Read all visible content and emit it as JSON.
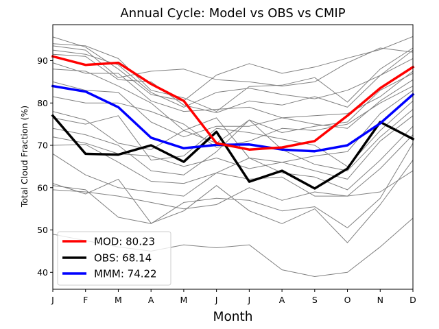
{
  "chart_data": {
    "type": "line",
    "title": "Annual Cycle: Model vs OBS vs CMIP",
    "xlabel": "Month",
    "ylabel": "Total Cloud Fraction (%)",
    "categories": [
      "J",
      "F",
      "M",
      "A",
      "M",
      "J",
      "J",
      "A",
      "S",
      "O",
      "N",
      "D"
    ],
    "ylim": [
      36,
      98.5
    ],
    "yticks": [
      40,
      50,
      60,
      70,
      80,
      90
    ],
    "legend_position": "lower-left",
    "series": [
      {
        "name": "MOD",
        "legend_label": "MOD: 80.23",
        "color": "#ff0000",
        "values": [
          91.0,
          89.0,
          89.5,
          84.5,
          80.5,
          70.5,
          69.0,
          69.5,
          71.0,
          77.0,
          83.5,
          88.5
        ]
      },
      {
        "name": "OBS",
        "legend_label": "OBS: 68.14",
        "color": "#000000",
        "values": [
          77.0,
          68.0,
          67.8,
          70.0,
          66.1,
          73.2,
          61.4,
          64.0,
          59.8,
          64.5,
          75.5,
          71.5
        ]
      },
      {
        "name": "MMM",
        "legend_label": "MMM: 74.22",
        "color": "#0000ff",
        "values": [
          84.0,
          82.7,
          79.0,
          71.8,
          69.3,
          70.1,
          70.2,
          69.0,
          68.6,
          70.0,
          75.2,
          82.0
        ]
      }
    ],
    "cmip_color": "#808080",
    "cmip_models": [
      [
        95.6,
        93.2,
        88.0,
        82.0,
        80.5,
        86.6,
        89.3,
        87.0,
        88.5,
        90.6,
        92.6,
        95.7
      ],
      [
        94.0,
        93.5,
        90.5,
        83.0,
        81.2,
        78.0,
        83.9,
        84.2,
        86.0,
        80.2,
        88.0,
        93.0
      ],
      [
        93.5,
        92.5,
        86.0,
        87.5,
        88.0,
        85.5,
        85.0,
        84.0,
        85.0,
        89.5,
        93.0,
        92.0
      ],
      [
        92.5,
        91.5,
        89.0,
        82.5,
        79.0,
        82.5,
        83.5,
        82.0,
        81.0,
        83.0,
        86.5,
        92.5
      ],
      [
        91.5,
        91.0,
        85.5,
        85.0,
        79.5,
        77.7,
        80.5,
        79.5,
        81.5,
        79.0,
        86.5,
        90.5
      ],
      [
        89.5,
        87.0,
        87.0,
        80.5,
        78.0,
        78.5,
        79.0,
        76.5,
        77.0,
        77.5,
        81.5,
        87.5
      ],
      [
        88.0,
        87.5,
        84.0,
        80.0,
        73.5,
        70.5,
        76.0,
        73.0,
        74.5,
        75.5,
        83.0,
        87.0
      ],
      [
        85.0,
        83.0,
        82.5,
        75.5,
        72.0,
        74.5,
        74.5,
        76.5,
        75.0,
        74.0,
        80.5,
        85.5
      ],
      [
        81.5,
        80.0,
        80.0,
        78.0,
        75.0,
        69.5,
        71.0,
        74.0,
        73.5,
        75.0,
        80.0,
        84.0
      ],
      [
        78.0,
        76.0,
        70.5,
        69.0,
        73.5,
        76.5,
        67.0,
        66.0,
        67.5,
        68.5,
        77.5,
        83.0
      ],
      [
        76.5,
        75.0,
        77.0,
        66.5,
        67.5,
        74.0,
        73.0,
        71.5,
        70.0,
        65.0,
        73.5,
        80.5
      ],
      [
        74.0,
        72.5,
        70.0,
        64.0,
        63.0,
        68.5,
        76.0,
        69.0,
        65.5,
        64.0,
        72.0,
        78.5
      ],
      [
        72.0,
        70.5,
        68.0,
        67.5,
        65.0,
        67.0,
        64.5,
        66.0,
        64.0,
        62.0,
        71.0,
        77.0
      ],
      [
        70.0,
        70.2,
        66.0,
        61.5,
        61.0,
        63.5,
        67.0,
        63.5,
        62.5,
        59.5,
        66.5,
        74.5
      ],
      [
        68.0,
        63.0,
        60.0,
        59.0,
        58.0,
        63.5,
        62.0,
        62.5,
        58.0,
        58.0,
        64.5,
        72.5
      ],
      [
        60.5,
        59.5,
        53.0,
        51.5,
        56.5,
        57.5,
        57.0,
        54.5,
        55.5,
        50.5,
        57.5,
        70.5
      ],
      [
        61.0,
        58.5,
        62.0,
        51.6,
        54.5,
        60.5,
        54.5,
        51.5,
        55.0,
        47.0,
        56.0,
        66.5
      ],
      [
        59.5,
        59.0,
        58.0,
        56.5,
        55.0,
        56.0,
        60.0,
        57.0,
        59.0,
        58.0,
        59.0,
        64.0
      ],
      [
        49.0,
        47.5,
        46.0,
        45.0,
        46.5,
        45.8,
        46.5,
        40.6,
        39.0,
        40.0,
        46.0,
        52.8
      ]
    ]
  }
}
